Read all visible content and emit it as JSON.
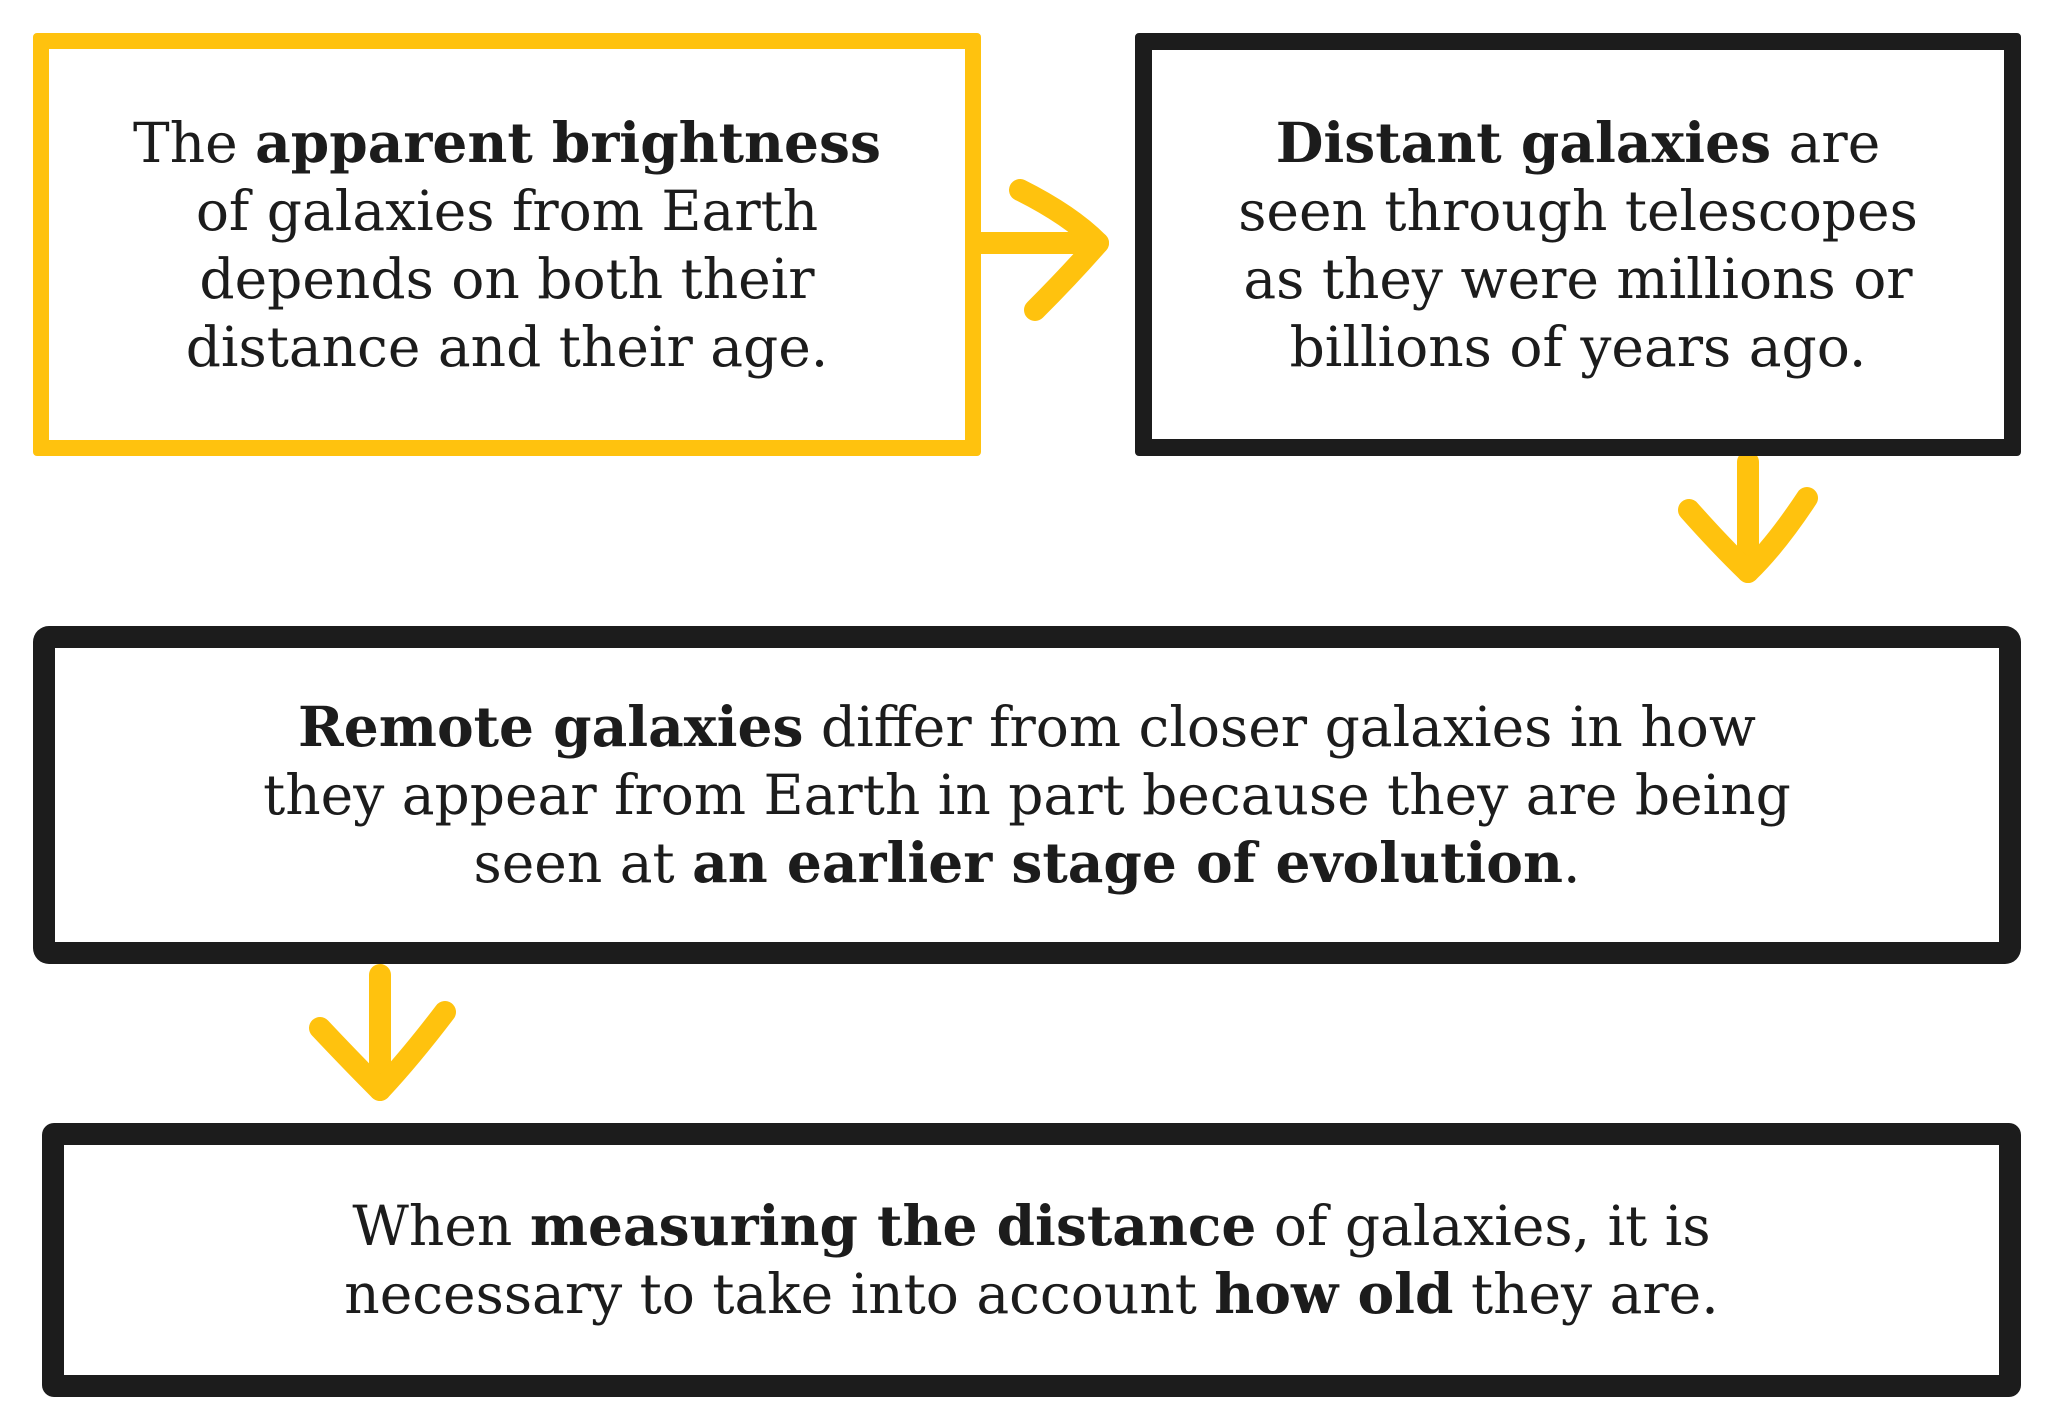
{
  "colors": {
    "accent": "#ffc20e",
    "ink": "#1c1c1c",
    "background": "#ffffff"
  },
  "boxes": [
    {
      "lines": [
        [
          {
            "text": "The ",
            "bold": false
          },
          {
            "text": "apparent brightness",
            "bold": true
          }
        ],
        [
          {
            "text": "of galaxies from Earth",
            "bold": false
          }
        ],
        [
          {
            "text": "depends on both their",
            "bold": false
          }
        ],
        [
          {
            "text": "distance and their age.",
            "bold": false
          }
        ]
      ]
    },
    {
      "lines": [
        [
          {
            "text": "Distant galaxies",
            "bold": true
          },
          {
            "text": " are",
            "bold": false
          }
        ],
        [
          {
            "text": "seen through telescopes",
            "bold": false
          }
        ],
        [
          {
            "text": "as they were millions or",
            "bold": false
          }
        ],
        [
          {
            "text": "billions of years ago.",
            "bold": false
          }
        ]
      ]
    },
    {
      "lines": [
        [
          {
            "text": "Remote galaxies",
            "bold": true
          },
          {
            "text": " differ from closer galaxies in how",
            "bold": false
          }
        ],
        [
          {
            "text": "they appear from Earth in part because they are being",
            "bold": false
          }
        ],
        [
          {
            "text": "seen at ",
            "bold": false
          },
          {
            "text": "an earlier stage of evolution",
            "bold": true
          },
          {
            "text": ".",
            "bold": false
          }
        ]
      ]
    },
    {
      "lines": [
        [
          {
            "text": "When ",
            "bold": false
          },
          {
            "text": "measuring the distance",
            "bold": true
          },
          {
            "text": " of galaxies, it is",
            "bold": false
          }
        ],
        [
          {
            "text": "necessary to take into account ",
            "bold": false
          },
          {
            "text": "how old",
            "bold": true
          },
          {
            "text": " they are.",
            "bold": false
          }
        ]
      ]
    }
  ]
}
